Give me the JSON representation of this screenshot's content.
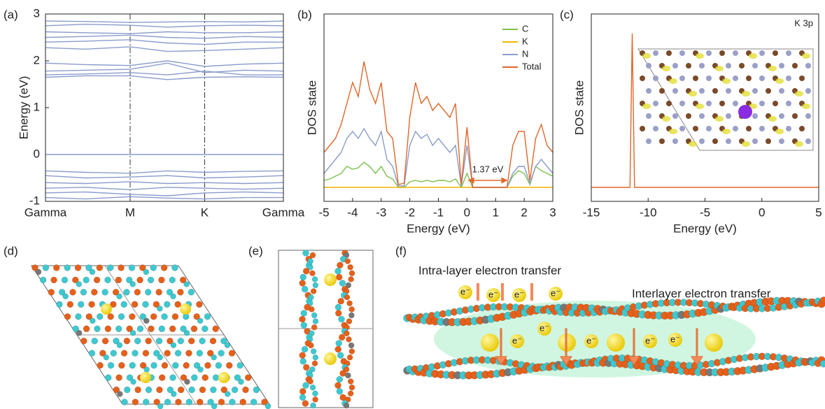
{
  "panel_labels": [
    "(a)",
    "(b)",
    "(c)",
    "(d)",
    "(e)",
    "(f)"
  ],
  "chart_data": [
    {
      "type": "line",
      "ylabel": "Energy (eV)",
      "color": "#8a9ccb",
      "grid": "x",
      "x": [
        0,
        0.47,
        1,
        1.44,
        1.88,
        2.35,
        2.81
      ],
      "xlim": [
        0,
        2.81
      ],
      "ylim": [
        -1,
        3
      ],
      "yticks": [
        -1,
        0,
        1,
        2,
        3
      ],
      "xticks": [
        {
          "value": 0,
          "label": "Gamma"
        },
        {
          "value": 1,
          "label": "M"
        },
        {
          "value": 1.88,
          "label": "K"
        },
        {
          "value": 2.81,
          "label": "Gamma"
        }
      ],
      "series": [
        {
          "values": [
            2.85,
            2.84,
            2.82,
            2.83,
            2.84,
            2.83,
            2.85
          ]
        },
        {
          "values": [
            2.75,
            2.78,
            2.76,
            2.72,
            2.75,
            2.76,
            2.75
          ]
        },
        {
          "values": [
            2.62,
            2.6,
            2.58,
            2.62,
            2.6,
            2.6,
            2.62
          ]
        },
        {
          "values": [
            2.5,
            2.52,
            2.55,
            2.5,
            2.48,
            2.52,
            2.5
          ]
        },
        {
          "values": [
            2.4,
            2.42,
            2.45,
            2.38,
            2.35,
            2.4,
            2.4
          ]
        },
        {
          "values": [
            2.28,
            2.25,
            2.3,
            2.2,
            2.22,
            2.25,
            2.28
          ]
        },
        {
          "values": [
            1.95,
            1.92,
            1.9,
            2.0,
            1.88,
            1.93,
            1.95
          ]
        },
        {
          "values": [
            1.78,
            1.8,
            1.82,
            1.95,
            1.75,
            1.8,
            1.78
          ]
        },
        {
          "values": [
            1.7,
            1.72,
            1.75,
            1.7,
            1.78,
            1.7,
            1.7
          ]
        },
        {
          "values": [
            1.65,
            1.68,
            1.68,
            1.6,
            1.65,
            1.66,
            1.65
          ]
        },
        {
          "values": [
            0,
            0,
            0,
            0,
            0,
            0,
            0
          ]
        },
        {
          "values": [
            -0.35,
            -0.38,
            -0.4,
            -0.35,
            -0.38,
            -0.36,
            -0.35
          ]
        },
        {
          "values": [
            -0.45,
            -0.5,
            -0.48,
            -0.45,
            -0.5,
            -0.48,
            -0.45
          ]
        },
        {
          "values": [
            -0.6,
            -0.62,
            -0.58,
            -0.62,
            -0.6,
            -0.62,
            -0.6
          ]
        },
        {
          "values": [
            -0.72,
            -0.7,
            -0.75,
            -0.7,
            -0.72,
            -0.74,
            -0.72
          ]
        },
        {
          "values": [
            -0.82,
            -0.8,
            -0.85,
            -0.88,
            -0.82,
            -0.8,
            -0.82
          ]
        },
        {
          "values": [
            -0.92,
            -0.95,
            -0.9,
            -0.93,
            -0.95,
            -0.92,
            -0.92
          ]
        }
      ]
    },
    {
      "type": "line",
      "xlabel": "Energy (eV)",
      "ylabel": "DOS state",
      "legend": "top-right",
      "xlim": [
        -5,
        3
      ],
      "ylim": [
        -1,
        12.4
      ],
      "xticks": [
        -5,
        -4,
        -3,
        -2,
        -1,
        0,
        1,
        2,
        3
      ],
      "x": [
        -5,
        -4.8,
        -4.6,
        -4.4,
        -4.2,
        -4,
        -3.8,
        -3.6,
        -3.4,
        -3.2,
        -3,
        -2.8,
        -2.6,
        -2.4,
        -2.2,
        -2,
        -1.8,
        -1.6,
        -1.4,
        -1.2,
        -1,
        -0.8,
        -0.6,
        -0.4,
        -0.2,
        0,
        0.2,
        0.4,
        0.6,
        0.8,
        1,
        1.2,
        1.4,
        1.6,
        1.8,
        2,
        2.2,
        2.4,
        2.6,
        2.8,
        3
      ],
      "series": [
        {
          "name": "C",
          "color": "#7cc04b",
          "values": [
            0.5,
            0.6,
            0.8,
            1.0,
            1.5,
            1.3,
            1.4,
            1.8,
            1.5,
            1.0,
            1.5,
            0.8,
            0.6,
            0,
            0,
            0.4,
            0.5,
            0.4,
            0.5,
            0.4,
            0.5,
            0.5,
            0.4,
            0.6,
            0,
            1.0,
            0,
            0,
            0,
            0,
            0,
            0,
            0,
            0.8,
            1.2,
            1.0,
            0.2,
            1.5,
            1.2,
            1.0,
            0.8
          ]
        },
        {
          "name": "K",
          "color": "#f0b400",
          "values": [
            0,
            0,
            0,
            0,
            0,
            0,
            0,
            0,
            0,
            0,
            0,
            0,
            0,
            0,
            0,
            0,
            0,
            0,
            0,
            0,
            0,
            0,
            0,
            0,
            0,
            0,
            0,
            0,
            0,
            0,
            0,
            0,
            0,
            0,
            0,
            0,
            0,
            0,
            0,
            0,
            0
          ]
        },
        {
          "name": "N",
          "color": "#8a9ccb",
          "values": [
            1.0,
            1.5,
            2.0,
            2.5,
            3.5,
            4.0,
            3.5,
            4.2,
            3.5,
            3.0,
            4.0,
            2.0,
            1.5,
            0.1,
            0.1,
            3.0,
            4.0,
            3.5,
            3.8,
            3.0,
            3.5,
            3.0,
            2.5,
            3.0,
            0.1,
            3.0,
            0,
            0,
            0,
            0,
            0,
            0,
            0,
            1.0,
            1.5,
            1.5,
            0.3,
            1.5,
            2.0,
            1.5,
            1.0
          ]
        },
        {
          "name": "Total",
          "color": "#e0662a",
          "values": [
            2.5,
            3.0,
            3.5,
            4.5,
            6.0,
            7.5,
            6.5,
            9.0,
            7.0,
            6.0,
            7.5,
            4.0,
            3.5,
            0.2,
            0.3,
            5.0,
            7.5,
            6.0,
            6.5,
            5.5,
            6.0,
            5.5,
            5.0,
            6.0,
            0.2,
            4.3,
            0,
            0,
            0,
            0,
            0,
            0,
            0,
            3.0,
            4.0,
            4.0,
            0.5,
            3.5,
            4.5,
            3.0,
            2.5
          ]
        }
      ],
      "annotation": {
        "text": "1.37 eV",
        "x": [
          0.05,
          1.4
        ],
        "y": 0.5,
        "color": "#e0662a"
      }
    },
    {
      "type": "line",
      "xlabel": "Energy (eV)",
      "ylabel": "DOS state",
      "label": "K 3p",
      "color": "#e0662a",
      "xlim": [
        -15,
        5
      ],
      "ylim": [
        -1,
        12.4
      ],
      "xticks": [
        -15,
        -10,
        -5,
        0,
        5
      ],
      "x": [
        -15,
        -11.6,
        -11.4,
        -11.2,
        5
      ],
      "series": [
        {
          "values": [
            0,
            0,
            11,
            0,
            0
          ]
        }
      ]
    }
  ],
  "panel_f": {
    "intra_label": "Intra-layer electron transfer",
    "inter_label": "Interlayer electron transfer",
    "electron": "e⁻"
  }
}
